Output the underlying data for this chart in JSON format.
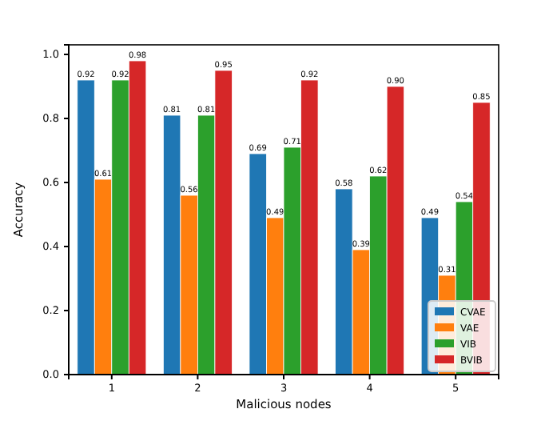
{
  "chart_data": {
    "type": "bar",
    "xlabel": "Malicious nodes",
    "ylabel": "Accuracy",
    "categories": [
      "1",
      "2",
      "3",
      "4",
      "5"
    ],
    "series": [
      {
        "name": "CVAE",
        "color": "#1f77b4",
        "values": [
          0.92,
          0.81,
          0.69,
          0.58,
          0.49
        ],
        "value_labels": [
          "0.92",
          "0.81",
          "0.69",
          "0.58",
          "0.49"
        ]
      },
      {
        "name": "VAE",
        "color": "#ff7f0e",
        "values": [
          0.61,
          0.56,
          0.49,
          0.39,
          0.31
        ],
        "value_labels": [
          "0.61",
          "0.56",
          "0.49",
          "0.39",
          "0.31"
        ]
      },
      {
        "name": "VIB",
        "color": "#2ca02c",
        "values": [
          0.92,
          0.81,
          0.71,
          0.62,
          0.54
        ],
        "value_labels": [
          "0.92",
          "0.81",
          "0.71",
          "0.62",
          "0.54"
        ]
      },
      {
        "name": "BVIB",
        "color": "#d62728",
        "values": [
          0.98,
          0.95,
          0.92,
          0.9,
          0.85
        ],
        "value_labels": [
          "0.98",
          "0.95",
          "0.92",
          "0.90",
          "0.85"
        ]
      }
    ],
    "ylim": [
      0,
      1.03
    ],
    "yticks": [
      {
        "value": 0,
        "label": "0.0"
      },
      {
        "value": 0.2,
        "label": "0.2"
      },
      {
        "value": 0.4,
        "label": "0.4"
      },
      {
        "value": 0.6,
        "label": "0.6"
      },
      {
        "value": 0.8,
        "label": "0.8"
      },
      {
        "value": 1,
        "label": "1.0"
      }
    ],
    "legend": "bottom right"
  }
}
